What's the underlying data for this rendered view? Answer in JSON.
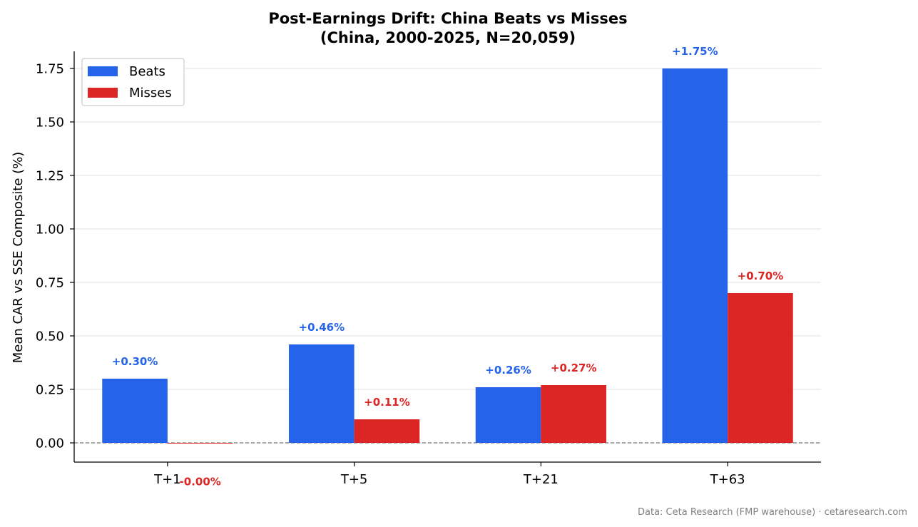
{
  "footer": "Data: Ceta Research (FMP warehouse) · cetaresearch.com",
  "chart_data": {
    "type": "bar",
    "title": "Post-Earnings Drift: China Beats vs Misses",
    "subtitle": "(China, 2000-2025, N=20,059)",
    "xlabel": "",
    "ylabel": "Mean CAR vs SSE Composite (%)",
    "categories": [
      "T+1",
      "T+5",
      "T+21",
      "T+63"
    ],
    "series": [
      {
        "name": "Beats",
        "color": "#2563eb",
        "values": [
          0.3,
          0.46,
          0.26,
          1.75
        ],
        "labels": [
          "+0.30%",
          "+0.46%",
          "+0.26%",
          "+1.75%"
        ]
      },
      {
        "name": "Misses",
        "color": "#dc2626",
        "values": [
          -0.002,
          0.11,
          0.27,
          0.7
        ],
        "labels": [
          "-0.00%",
          "+0.11%",
          "+0.27%",
          "+0.70%"
        ]
      }
    ],
    "ylim": [
      -0.09,
      1.83
    ],
    "yticks": [
      "0.00",
      "0.25",
      "0.50",
      "0.75",
      "1.00",
      "1.25",
      "1.50",
      "1.75"
    ],
    "grid": "horizontal",
    "legend": "top-left",
    "zero_line": "dashed"
  }
}
